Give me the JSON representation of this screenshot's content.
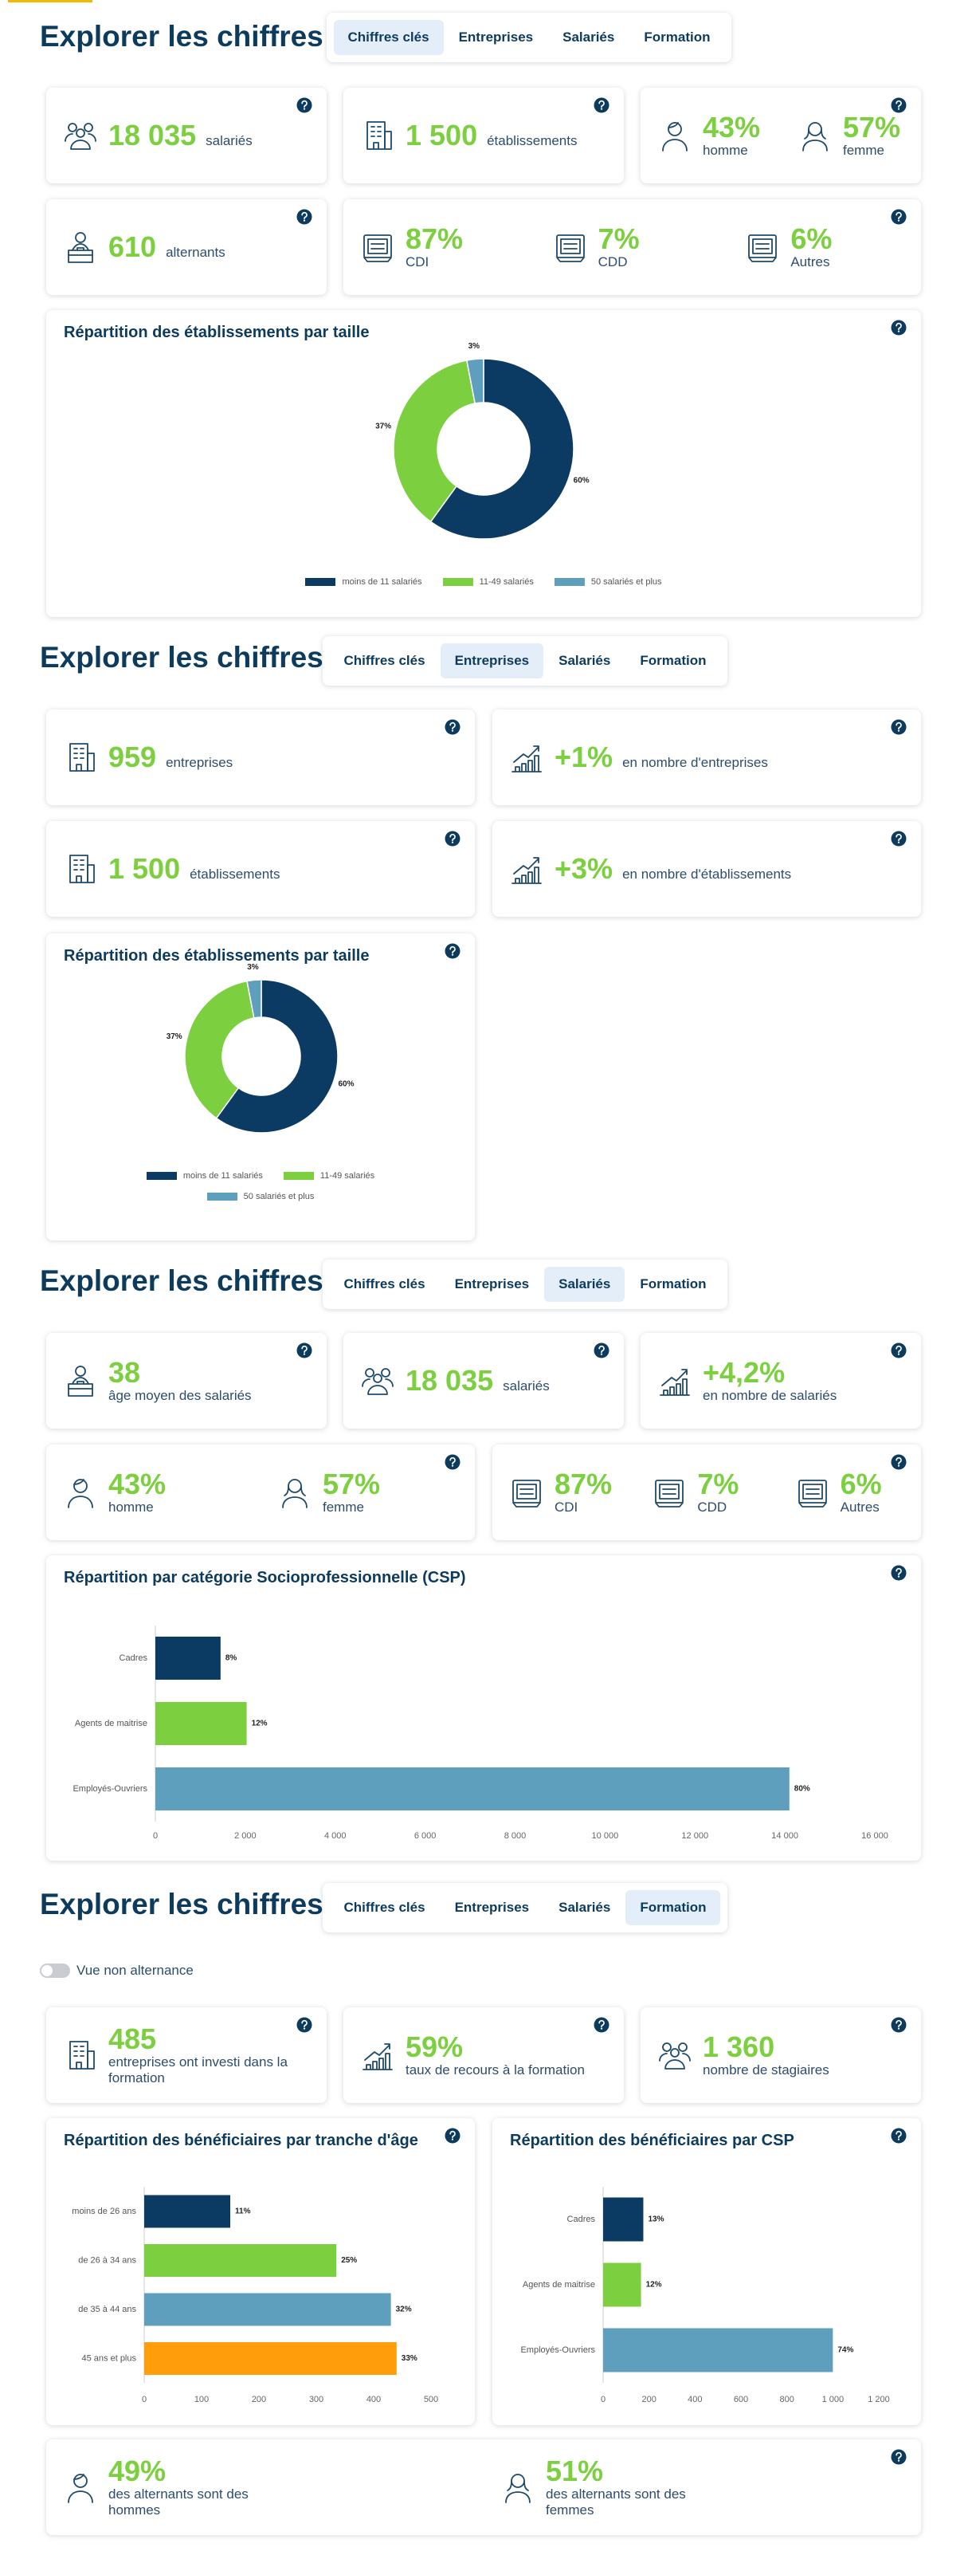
{
  "sections": [
    {
      "title": "Explorer les chiffres",
      "tabs": [
        "Chiffres clés",
        "Entreprises",
        "Salariés",
        "Formation"
      ],
      "active_tab": 0,
      "cards": [
        {
          "items": [
            {
              "value": "18 035",
              "label": "salariés"
            }
          ]
        },
        {
          "items": [
            {
              "value": "1 500",
              "label": "établissements"
            }
          ]
        },
        {
          "items": [
            {
              "value": "43%",
              "label": "homme"
            },
            {
              "value": "57%",
              "label": "femme"
            }
          ]
        },
        {
          "items": [
            {
              "value": "610",
              "label": "alternants"
            }
          ]
        },
        {
          "items": [
            {
              "value": "87%",
              "label": "CDI"
            },
            {
              "value": "7%",
              "label": "CDD"
            },
            {
              "value": "6%",
              "label": "Autres"
            }
          ]
        }
      ]
    },
    {
      "title": "Explorer les chiffres",
      "tabs": [
        "Chiffres clés",
        "Entreprises",
        "Salariés",
        "Formation"
      ],
      "active_tab": 1,
      "cards": [
        {
          "items": [
            {
              "value": "959",
              "label": "entreprises"
            }
          ]
        },
        {
          "items": [
            {
              "value": "+1%",
              "label": "en nombre d'entreprises"
            }
          ]
        },
        {
          "items": [
            {
              "value": "1 500",
              "label": "établissements"
            }
          ]
        },
        {
          "items": [
            {
              "value": "+3%",
              "label": "en nombre d'établissements"
            }
          ]
        }
      ]
    },
    {
      "title": "Explorer les chiffres",
      "tabs": [
        "Chiffres clés",
        "Entreprises",
        "Salariés",
        "Formation"
      ],
      "active_tab": 2,
      "cards": [
        {
          "items": [
            {
              "value": "38",
              "label": "âge moyen des salariés"
            }
          ]
        },
        {
          "items": [
            {
              "value": "18 035",
              "label": "salariés"
            }
          ]
        },
        {
          "items": [
            {
              "value": "+4,2%",
              "label": "en nombre de salariés"
            }
          ]
        },
        {
          "items": [
            {
              "value": "43%",
              "label": "homme"
            },
            {
              "value": "57%",
              "label": "femme"
            }
          ]
        },
        {
          "items": [
            {
              "value": "87%",
              "label": "CDI"
            },
            {
              "value": "7%",
              "label": "CDD"
            },
            {
              "value": "6%",
              "label": "Autres"
            }
          ]
        }
      ]
    },
    {
      "title": "Explorer les chiffres",
      "tabs": [
        "Chiffres clés",
        "Entreprises",
        "Salariés",
        "Formation"
      ],
      "active_tab": 3,
      "toggle_label": "Vue non alternance",
      "cards": [
        {
          "items": [
            {
              "value": "485",
              "label": "entreprises ont investi dans la formation"
            }
          ]
        },
        {
          "items": [
            {
              "value": "59%",
              "label": "taux de recours à la formation"
            }
          ]
        },
        {
          "items": [
            {
              "value": "1 360",
              "label": "nombre de stagiaires"
            }
          ]
        },
        {
          "items": [
            {
              "value": "49%",
              "label": "des alternants sont des hommes"
            },
            {
              "value": "51%",
              "label": "des alternants sont des femmes"
            }
          ]
        }
      ]
    }
  ],
  "chart_data": [
    {
      "type": "donut",
      "title": "Répartition des établissements par taille",
      "categories": [
        "moins de 11 salariés",
        "11-49 salariés",
        "50 salariés et plus"
      ],
      "values": [
        60,
        37,
        3
      ],
      "value_labels": [
        "60%",
        "37%",
        "3%"
      ],
      "colors": [
        "#0b3a63",
        "#7ccf3f",
        "#5f9fbe"
      ]
    },
    {
      "type": "donut",
      "title": "Répartition des établissements par taille",
      "categories": [
        "moins de 11 salariés",
        "11-49 salariés",
        "50 salariés et plus"
      ],
      "values": [
        60,
        37,
        3
      ],
      "value_labels": [
        "60%",
        "37%",
        "3%"
      ],
      "colors": [
        "#0b3a63",
        "#7ccf3f",
        "#5f9fbe"
      ]
    },
    {
      "type": "bar",
      "orientation": "horizontal",
      "title": "Répartition par catégorie Socioprofessionnelle (CSP)",
      "categories": [
        "Cadres",
        "Agents de maitrise",
        "Employés-Ouvriers"
      ],
      "values": [
        1450,
        2030,
        14100
      ],
      "share_labels": [
        "8%",
        "12%",
        "80%"
      ],
      "colors": [
        "#0b3a63",
        "#7ccf3f",
        "#5f9fbe"
      ],
      "xlim": [
        0,
        16000
      ],
      "xticks": [
        0,
        {
          "value": 2000,
          "label": "2 000"
        },
        {
          "value": 4000,
          "label": "4 000"
        },
        {
          "value": 6000,
          "label": "6 000"
        },
        {
          "value": 8000,
          "label": "8 000"
        },
        {
          "value": 10000,
          "label": "10 000"
        },
        {
          "value": 12000,
          "label": "12 000"
        },
        {
          "value": 14000,
          "label": "14 000"
        },
        {
          "value": 16000,
          "label": "16 000"
        }
      ]
    },
    {
      "type": "bar",
      "orientation": "horizontal",
      "title": "Répartition des bénéficiaires par tranche d'âge",
      "categories": [
        "moins de 26 ans",
        "de 26 à 34 ans",
        "de 35 à 44 ans",
        "45 ans et plus"
      ],
      "values": [
        150,
        335,
        430,
        440
      ],
      "share_labels": [
        "11%",
        "25%",
        "32%",
        "33%"
      ],
      "colors": [
        "#0b3a63",
        "#7ccf3f",
        "#5f9fbe",
        "#ff9d0a"
      ],
      "xlim": [
        0,
        500
      ],
      "xticks": [
        0,
        100,
        200,
        300,
        400,
        500
      ]
    },
    {
      "type": "bar",
      "orientation": "horizontal",
      "title": "Répartition des bénéficiaires par CSP",
      "categories": [
        "Cadres",
        "Agents de maitrise",
        "Employés-Ouvriers"
      ],
      "values": [
        175,
        165,
        1000
      ],
      "share_labels": [
        "13%",
        "12%",
        "74%"
      ],
      "colors": [
        "#0b3a63",
        "#7ccf3f",
        "#5f9fbe"
      ],
      "xlim": [
        0,
        1200
      ],
      "xticks": [
        0,
        200,
        400,
        600,
        800,
        {
          "value": 1000,
          "label": "1 000"
        },
        {
          "value": 1200,
          "label": "1 200"
        }
      ]
    }
  ]
}
